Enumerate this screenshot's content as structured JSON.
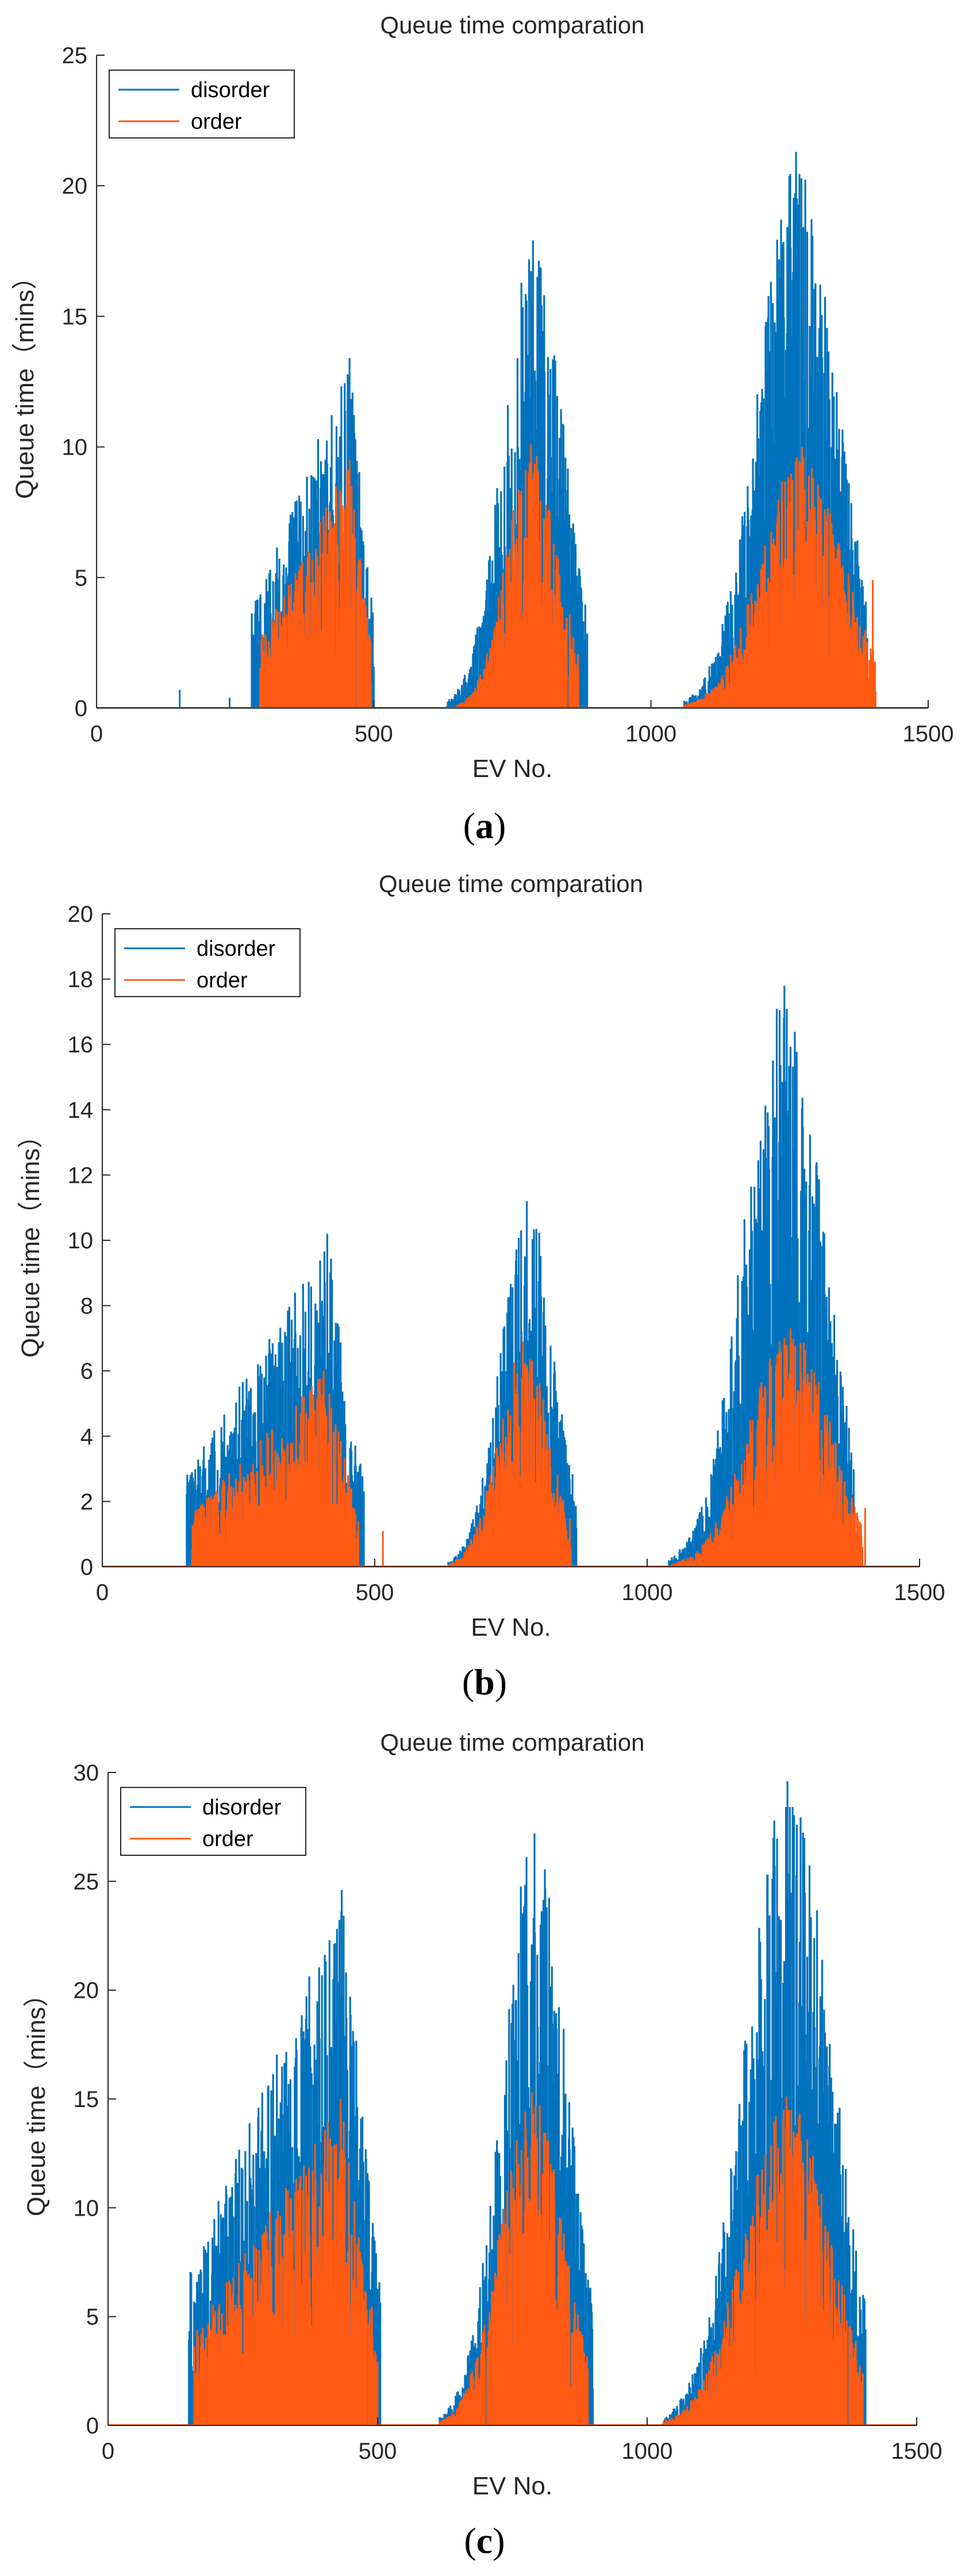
{
  "figure": {
    "panels": [
      {
        "id": "a",
        "label_open": "(",
        "label_letter": "a",
        "label_close": ")"
      },
      {
        "id": "b",
        "label_open": "(",
        "label_letter": "b",
        "label_close": ")"
      },
      {
        "id": "c",
        "label_open": "(",
        "label_letter": "c",
        "label_close": ")"
      }
    ]
  },
  "colors": {
    "disorder": "#0072BD",
    "order": "#FF5A14",
    "axis": "#262626"
  },
  "chart_data": [
    {
      "type": "bar",
      "title": "Queue time comparation",
      "xlabel": "EV No.",
      "ylabel": "Queue time（mins）",
      "xlim": [
        0,
        1500
      ],
      "ylim": [
        0,
        25
      ],
      "xticks": [
        0,
        500,
        1000,
        1500
      ],
      "yticks": [
        0,
        5,
        10,
        15,
        20,
        25
      ],
      "legend": {
        "position": "top-left",
        "entries": [
          "disorder",
          "order"
        ]
      },
      "series": [
        {
          "name": "disorder",
          "clusters": [
            {
              "x0": 280,
              "x1": 500,
              "peak": 13.4,
              "profile": "ramp"
            },
            {
              "x0": 630,
              "x1": 885,
              "peak": 17.9,
              "profile": "bell"
            },
            {
              "x0": 1060,
              "x1": 1390,
              "peak": 21.3,
              "profile": "bell"
            }
          ],
          "singles": [
            [
              150,
              0.7
            ],
            [
              240,
              0.4
            ]
          ]
        },
        {
          "name": "order",
          "clusters": [
            {
              "x0": 295,
              "x1": 495,
              "peak": 9.5,
              "profile": "ramp"
            },
            {
              "x0": 650,
              "x1": 870,
              "peak": 10.1,
              "profile": "bell"
            },
            {
              "x0": 1060,
              "x1": 1405,
              "peak": 10.0,
              "profile": "bell"
            }
          ],
          "singles": [
            [
              1400,
              4.9
            ]
          ]
        }
      ]
    },
    {
      "type": "bar",
      "title": "Queue time comparation",
      "xlabel": "EV No.",
      "ylabel": "Queue time（mins）",
      "xlim": [
        0,
        1500
      ],
      "ylim": [
        0,
        20
      ],
      "xticks": [
        0,
        500,
        1000,
        1500
      ],
      "yticks": [
        0,
        2,
        4,
        6,
        8,
        10,
        12,
        14,
        16,
        18,
        20
      ],
      "legend": {
        "position": "top-left",
        "entries": [
          "disorder",
          "order"
        ]
      },
      "series": [
        {
          "name": "disorder",
          "clusters": [
            {
              "x0": 155,
              "x1": 480,
              "peak": 10.2,
              "profile": "ramp"
            },
            {
              "x0": 635,
              "x1": 870,
              "peak": 11.2,
              "profile": "bell"
            },
            {
              "x0": 1040,
              "x1": 1380,
              "peak": 17.8,
              "profile": "bell"
            }
          ],
          "singles": []
        },
        {
          "name": "order",
          "clusters": [
            {
              "x0": 165,
              "x1": 470,
              "peak": 6.0,
              "profile": "ramp"
            },
            {
              "x0": 635,
              "x1": 860,
              "peak": 6.9,
              "profile": "bell"
            },
            {
              "x0": 1045,
              "x1": 1395,
              "peak": 7.3,
              "profile": "bell"
            }
          ],
          "singles": [
            [
              515,
              1.1
            ],
            [
              1400,
              1.8
            ]
          ]
        }
      ]
    },
    {
      "type": "bar",
      "title": "Queue time comparation",
      "xlabel": "EV No.",
      "ylabel": "Queue time（mins）",
      "xlim": [
        0,
        1500
      ],
      "ylim": [
        0,
        30
      ],
      "xticks": [
        0,
        500,
        1000,
        1500
      ],
      "yticks": [
        0,
        5,
        10,
        15,
        20,
        25,
        30
      ],
      "legend": {
        "position": "top-left",
        "entries": [
          "disorder",
          "order"
        ]
      },
      "series": [
        {
          "name": "disorder",
          "clusters": [
            {
              "x0": 150,
              "x1": 505,
              "peak": 24.6,
              "profile": "ramp"
            },
            {
              "x0": 615,
              "x1": 900,
              "peak": 27.2,
              "profile": "bell"
            },
            {
              "x0": 1030,
              "x1": 1405,
              "peak": 29.6,
              "profile": "bell"
            }
          ],
          "singles": [
            [
              185,
              4.2
            ]
          ]
        },
        {
          "name": "order",
          "clusters": [
            {
              "x0": 160,
              "x1": 500,
              "peak": 15.0,
              "profile": "ramp"
            },
            {
              "x0": 615,
              "x1": 890,
              "peak": 15.3,
              "profile": "bell"
            },
            {
              "x0": 1030,
              "x1": 1400,
              "peak": 15.1,
              "profile": "bell"
            }
          ],
          "singles": []
        }
      ]
    }
  ]
}
